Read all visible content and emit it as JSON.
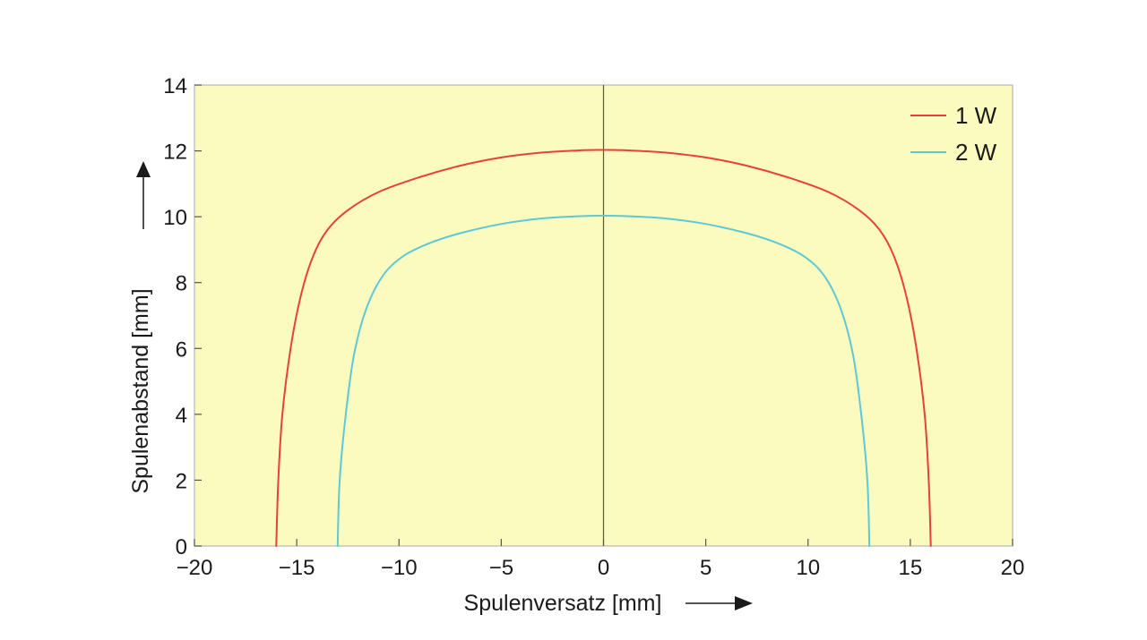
{
  "chart_data": {
    "type": "line",
    "xlabel": "Spulenversatz [mm]",
    "ylabel": "Spulenabstand [mm]",
    "xlim": [
      -20,
      20
    ],
    "ylim": [
      0,
      14
    ],
    "xticks": [
      -20,
      -15,
      -10,
      -5,
      0,
      5,
      10,
      15,
      20
    ],
    "xtick_labels": [
      "−20",
      "−15",
      "−10",
      "−5",
      "0",
      "5",
      "10",
      "15",
      "20"
    ],
    "yticks": [
      0,
      2,
      4,
      6,
      8,
      10,
      12,
      14
    ],
    "ytick_labels": [
      "0",
      "2",
      "4",
      "6",
      "8",
      "10",
      "12",
      "14"
    ],
    "grid": false,
    "legend_position": "top-right",
    "background_color": "#fbfbbf",
    "series": [
      {
        "name": "1 W",
        "color": "#e8403a",
        "x": [
          -16.0,
          -15.9,
          -15.7,
          -15.3,
          -14.8,
          -14.2,
          -13.5,
          -12.5,
          -11.0,
          -9.0,
          -7.0,
          -5.0,
          -3.0,
          -1.0,
          0.0,
          1.0,
          3.0,
          5.0,
          7.0,
          9.0,
          11.0,
          12.5,
          13.5,
          14.2,
          14.8,
          15.3,
          15.7,
          15.9,
          16.0
        ],
        "y": [
          0.0,
          2.0,
          4.0,
          6.0,
          7.6,
          8.8,
          9.6,
          10.2,
          10.75,
          11.2,
          11.55,
          11.8,
          11.95,
          12.02,
          12.03,
          12.02,
          11.95,
          11.8,
          11.55,
          11.2,
          10.75,
          10.2,
          9.6,
          8.8,
          7.6,
          6.0,
          4.0,
          2.0,
          0.0
        ]
      },
      {
        "name": "2 W",
        "color": "#5ec8d8",
        "x": [
          -13.0,
          -12.9,
          -12.6,
          -12.2,
          -11.6,
          -10.8,
          -9.8,
          -8.5,
          -7.0,
          -5.0,
          -3.0,
          -1.0,
          0.0,
          1.0,
          3.0,
          5.0,
          7.0,
          8.5,
          9.8,
          10.8,
          11.6,
          12.2,
          12.6,
          12.9,
          13.0
        ],
        "y": [
          0.0,
          2.0,
          4.0,
          5.8,
          7.2,
          8.2,
          8.8,
          9.2,
          9.5,
          9.78,
          9.95,
          10.02,
          10.03,
          10.02,
          9.95,
          9.78,
          9.5,
          9.2,
          8.8,
          8.2,
          7.2,
          5.8,
          4.0,
          2.0,
          0.0
        ]
      }
    ]
  }
}
